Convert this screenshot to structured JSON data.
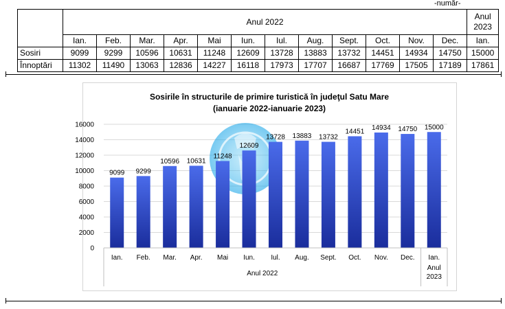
{
  "header": {
    "unit_label": "-număr-",
    "year_2022": "Anul 2022",
    "year_2023": "Anul 2023"
  },
  "table": {
    "months": [
      "Ian.",
      "Feb.",
      "Mar.",
      "Apr.",
      "Mai",
      "Iun.",
      "Iul.",
      "Aug.",
      "Sept.",
      "Oct.",
      "Nov.",
      "Dec.",
      "Ian."
    ],
    "rows": [
      {
        "label": "Sosiri",
        "values": [
          9099,
          9299,
          10596,
          10631,
          11248,
          12609,
          13728,
          13883,
          13732,
          14451,
          14934,
          14750,
          15000
        ]
      },
      {
        "label": "Înnoptări",
        "values": [
          11302,
          11490,
          13063,
          12836,
          14227,
          16118,
          17973,
          17707,
          16687,
          17769,
          17505,
          17189,
          17861
        ]
      }
    ]
  },
  "chart_data": {
    "type": "bar",
    "title": "Sosirile în structurile de primire turistică în judeţul Satu Mare",
    "subtitle": "(ianuarie 2022-ianuarie 2023)",
    "categories": [
      "Ian.",
      "Feb.",
      "Mar.",
      "Apr.",
      "Mai",
      "Iun.",
      "Iul.",
      "Aug.",
      "Sept.",
      "Oct.",
      "Nov.",
      "Dec.",
      "Ian."
    ],
    "category_groups": [
      {
        "label": "Anul 2022",
        "span": 12
      },
      {
        "label": "Anul 2023",
        "span": 1
      }
    ],
    "values": [
      9099,
      9299,
      10596,
      10631,
      11248,
      12609,
      13728,
      13883,
      13732,
      14451,
      14934,
      14750,
      15000
    ],
    "yticks": [
      0,
      2000,
      4000,
      6000,
      8000,
      10000,
      12000,
      14000,
      16000
    ],
    "ylim": [
      0,
      16000
    ],
    "grid": true,
    "legend": "none",
    "data_labels": true,
    "colors": {
      "bar_top": "#4a6bea",
      "bar_bottom": "#1a2d9c",
      "grid": "#d9d9d9",
      "watermark": "#1ea7e8"
    }
  }
}
